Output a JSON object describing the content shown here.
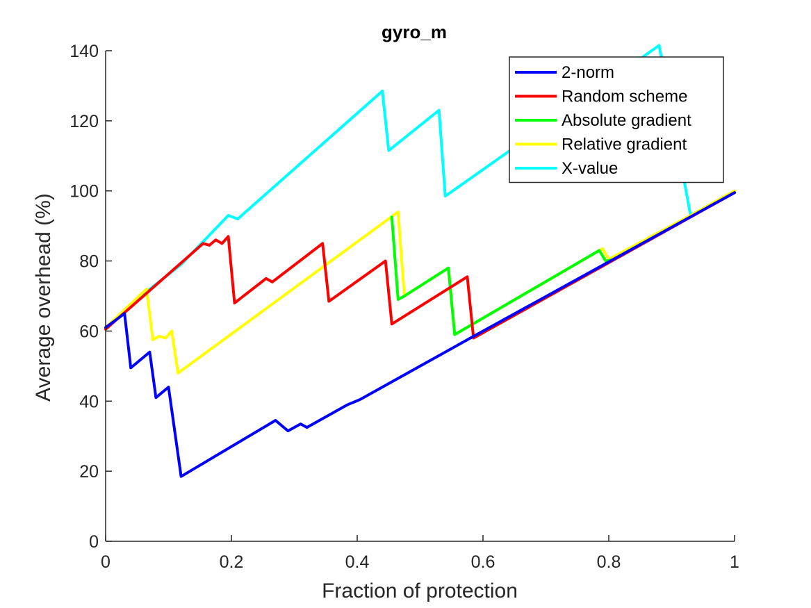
{
  "chart_data": {
    "type": "line",
    "title": "gyro_m",
    "xlabel": "Fraction of protection",
    "ylabel": "Average overhead (%)",
    "xlim": [
      0,
      1
    ],
    "ylim": [
      0,
      140
    ],
    "xticks": [
      0,
      0.2,
      0.4,
      0.6,
      0.8,
      1
    ],
    "xtick_labels": [
      "0",
      "0.2",
      "0.4",
      "0.6",
      "0.8",
      "1"
    ],
    "yticks": [
      0,
      20,
      40,
      60,
      80,
      100,
      120,
      140
    ],
    "ytick_labels": [
      "0",
      "20",
      "40",
      "60",
      "80",
      "100",
      "120",
      "140"
    ],
    "grid": false,
    "legend_position": "top-right",
    "series": [
      {
        "name": "X-value",
        "color": "#00FFFF",
        "points": [
          [
            0,
            61
          ],
          [
            0.06,
            70.5
          ],
          [
            0.12,
            79
          ],
          [
            0.195,
            93
          ],
          [
            0.21,
            92
          ],
          [
            0.44,
            128.5
          ],
          [
            0.45,
            111.5
          ],
          [
            0.53,
            123
          ],
          [
            0.54,
            98.5
          ],
          [
            0.88,
            141.5
          ],
          [
            0.93,
            93
          ],
          [
            1,
            100
          ]
        ]
      },
      {
        "name": "Relative gradient",
        "color": "#FFFF00",
        "points": [
          [
            0,
            61
          ],
          [
            0.065,
            72
          ],
          [
            0.075,
            57.5
          ],
          [
            0.085,
            58.5
          ],
          [
            0.095,
            58
          ],
          [
            0.105,
            60
          ],
          [
            0.115,
            48
          ],
          [
            0.465,
            94
          ],
          [
            0.475,
            70
          ],
          [
            0.545,
            78
          ],
          [
            0.555,
            59
          ],
          [
            0.79,
            83.5
          ],
          [
            0.8,
            80.5
          ],
          [
            0.93,
            93
          ],
          [
            1,
            100
          ]
        ]
      },
      {
        "name": "Absolute gradient",
        "color": "#00FF00",
        "points": [
          [
            0.455,
            92.5
          ],
          [
            0.465,
            69
          ],
          [
            0.475,
            70
          ],
          [
            0.545,
            78
          ],
          [
            0.555,
            59
          ],
          [
            0.785,
            83
          ],
          [
            0.795,
            80
          ],
          [
            0.81,
            80.5
          ]
        ]
      },
      {
        "name": "Random scheme",
        "color": "#FF0000",
        "points": [
          [
            0,
            60.5
          ],
          [
            0.155,
            85
          ],
          [
            0.165,
            84.5
          ],
          [
            0.175,
            86
          ],
          [
            0.185,
            85
          ],
          [
            0.195,
            87
          ],
          [
            0.205,
            68
          ],
          [
            0.255,
            75
          ],
          [
            0.265,
            74
          ],
          [
            0.345,
            85
          ],
          [
            0.355,
            68.5
          ],
          [
            0.445,
            80
          ],
          [
            0.455,
            62
          ],
          [
            0.575,
            75.5
          ],
          [
            0.585,
            58
          ],
          [
            1,
            99.5
          ]
        ]
      },
      {
        "name": "2-norm",
        "color": "#0000FF",
        "points": [
          [
            0,
            61
          ],
          [
            0.03,
            65
          ],
          [
            0.04,
            49.5
          ],
          [
            0.07,
            54
          ],
          [
            0.08,
            41
          ],
          [
            0.1,
            44
          ],
          [
            0.12,
            18.5
          ],
          [
            0.27,
            34.5
          ],
          [
            0.29,
            31.5
          ],
          [
            0.31,
            33.5
          ],
          [
            0.32,
            32.5
          ],
          [
            0.385,
            39
          ],
          [
            0.405,
            40.5
          ],
          [
            0.58,
            58
          ],
          [
            1,
            99.5
          ]
        ]
      }
    ],
    "legend_entries": [
      "2-norm",
      "Random scheme",
      "Absolute gradient",
      "Relative gradient",
      "X-value"
    ]
  }
}
